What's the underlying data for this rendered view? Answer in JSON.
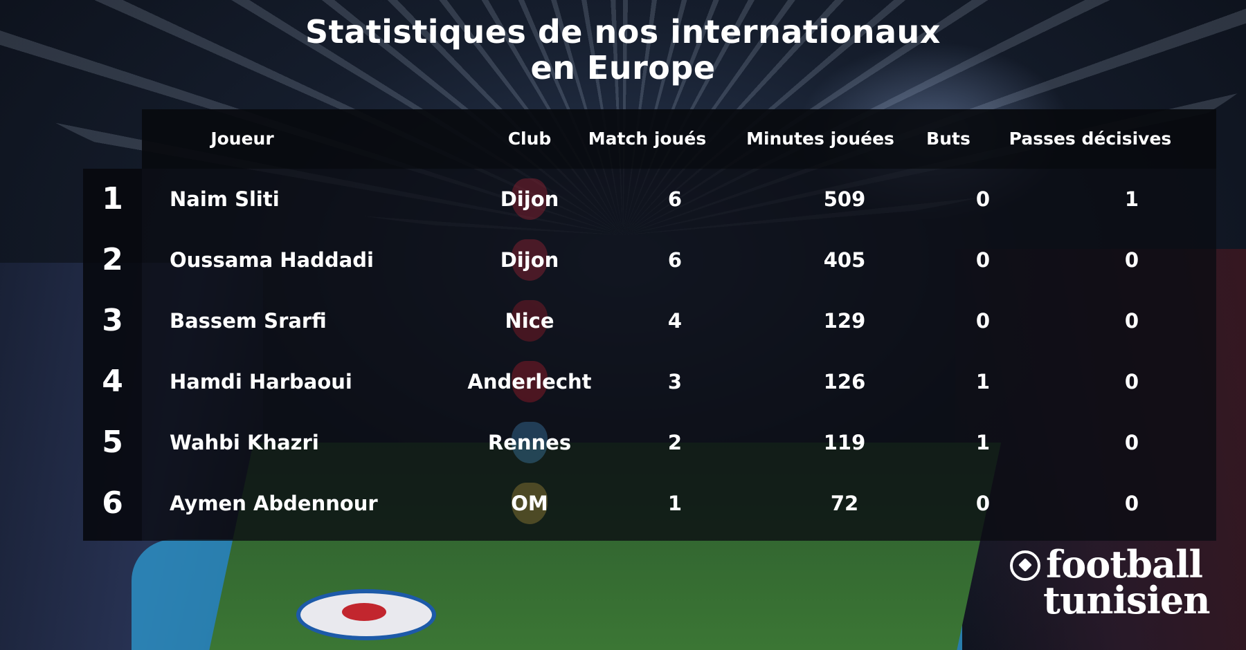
{
  "title_line1": "Statistiques de nos internationaux",
  "title_line2": "en Europe",
  "headers": {
    "player": "Joueur",
    "club": "Club",
    "matches": "Match joués",
    "minutes": "Minutes jouées",
    "goals": "Buts",
    "assists": "Passes décisives"
  },
  "rows": [
    {
      "rank": "1",
      "player": "Naim Sliti",
      "club": "Dijon",
      "matches": "6",
      "minutes": "509",
      "goals": "0",
      "assists": "1",
      "crest_color": "#c8283a"
    },
    {
      "rank": "2",
      "player": "Oussama Haddadi",
      "club": "Dijon",
      "matches": "6",
      "minutes": "405",
      "goals": "0",
      "assists": "0",
      "crest_color": "#c8283a"
    },
    {
      "rank": "3",
      "player": "Bassem Srarfi",
      "club": "Nice",
      "matches": "4",
      "minutes": "129",
      "goals": "0",
      "assists": "0",
      "crest_color": "#b8202a"
    },
    {
      "rank": "4",
      "player": "Hamdi Harbaoui",
      "club": "Anderlecht",
      "matches": "3",
      "minutes": "126",
      "goals": "1",
      "assists": "0",
      "crest_color": "#d02030"
    },
    {
      "rank": "5",
      "player": "Wahbi Khazri",
      "club": "Rennes",
      "matches": "2",
      "minutes": "119",
      "goals": "1",
      "assists": "0",
      "crest_color": "#4a9ad8"
    },
    {
      "rank": "6",
      "player": "Aymen Abdennour",
      "club": "OM",
      "matches": "1",
      "minutes": "72",
      "goals": "0",
      "assists": "0",
      "crest_color": "#c9a640"
    }
  ],
  "logo": {
    "line1": "football",
    "line2": "tunisien"
  }
}
